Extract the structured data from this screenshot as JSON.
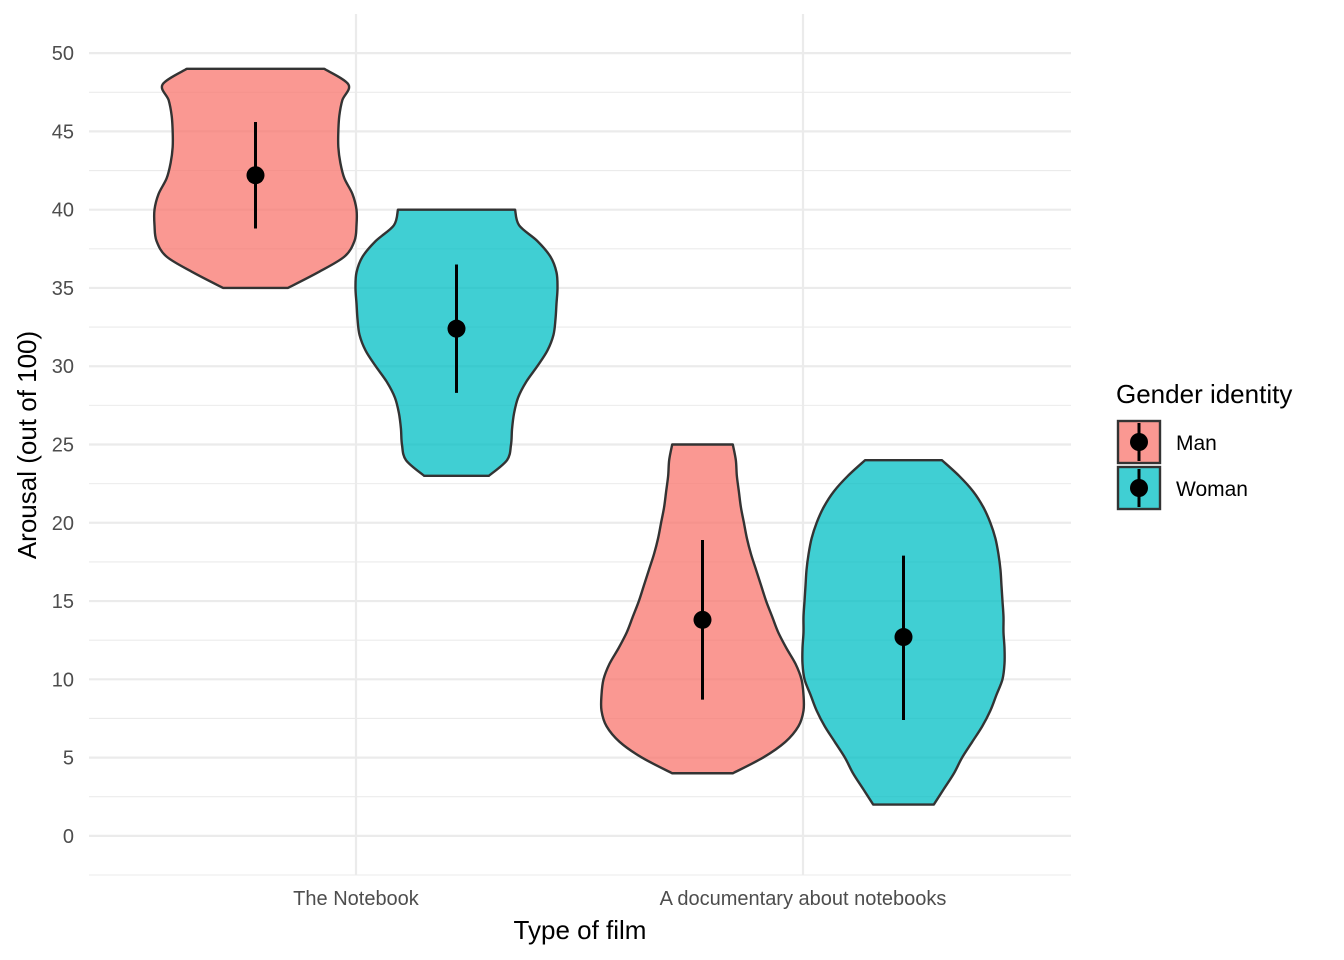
{
  "chart_data": {
    "type": "violin",
    "xlabel": "Type of film",
    "ylabel": "Arousal (out of 100)",
    "categories": [
      "The Notebook",
      "A documentary about notebooks"
    ],
    "ylim": [
      -2.5,
      52.5
    ],
    "yticks": [
      0,
      5,
      10,
      15,
      20,
      25,
      30,
      35,
      40,
      45,
      50
    ],
    "grid": true,
    "legend": {
      "title": "Gender identity",
      "position": "right",
      "entries": [
        "Man",
        "Woman"
      ]
    },
    "series": [
      {
        "name": "Man",
        "color": "#F8766D",
        "groups": [
          {
            "category": "The Notebook",
            "mean": 42.2,
            "lower": 38.8,
            "upper": 45.6,
            "ymin": 35,
            "ymax": 49,
            "density": [
              [
                35,
                0.32
              ],
              [
                36,
                0.62
              ],
              [
                37,
                0.88
              ],
              [
                38,
                0.98
              ],
              [
                39,
                1.0
              ],
              [
                40,
                1.0
              ],
              [
                41,
                0.96
              ],
              [
                42,
                0.88
              ],
              [
                43,
                0.84
              ],
              [
                44,
                0.82
              ],
              [
                45,
                0.82
              ],
              [
                46,
                0.83
              ],
              [
                47,
                0.86
              ],
              [
                48,
                0.92
              ],
              [
                49,
                0.68
              ]
            ]
          },
          {
            "category": "A documentary about notebooks",
            "mean": 13.8,
            "lower": 8.7,
            "upper": 18.9,
            "ymin": 4,
            "ymax": 25,
            "density": [
              [
                4,
                0.3
              ],
              [
                5,
                0.6
              ],
              [
                6,
                0.82
              ],
              [
                7,
                0.95
              ],
              [
                8,
                1.0
              ],
              [
                9,
                1.0
              ],
              [
                10,
                0.98
              ],
              [
                11,
                0.92
              ],
              [
                12,
                0.83
              ],
              [
                13,
                0.75
              ],
              [
                14,
                0.69
              ],
              [
                15,
                0.63
              ],
              [
                16,
                0.58
              ],
              [
                17,
                0.53
              ],
              [
                18,
                0.48
              ],
              [
                19,
                0.44
              ],
              [
                20,
                0.41
              ],
              [
                21,
                0.38
              ],
              [
                22,
                0.36
              ],
              [
                23,
                0.34
              ],
              [
                24,
                0.33
              ],
              [
                25,
                0.3
              ]
            ]
          }
        ]
      },
      {
        "name": "Woman",
        "color": "#00BFC4",
        "groups": [
          {
            "category": "The Notebook",
            "mean": 32.4,
            "lower": 28.3,
            "upper": 36.5,
            "ymin": 23,
            "ymax": 40,
            "density": [
              [
                23,
                0.32
              ],
              [
                24,
                0.5
              ],
              [
                25,
                0.54
              ],
              [
                26,
                0.55
              ],
              [
                27,
                0.57
              ],
              [
                28,
                0.61
              ],
              [
                29,
                0.69
              ],
              [
                30,
                0.8
              ],
              [
                31,
                0.9
              ],
              [
                32,
                0.96
              ],
              [
                33,
                0.98
              ],
              [
                34,
                0.99
              ],
              [
                35,
                1.0
              ],
              [
                36,
                0.99
              ],
              [
                37,
                0.93
              ],
              [
                38,
                0.8
              ],
              [
                39,
                0.62
              ],
              [
                40,
                0.58
              ]
            ]
          },
          {
            "category": "A documentary about notebooks",
            "mean": 12.7,
            "lower": 7.4,
            "upper": 17.9,
            "ymin": 2,
            "ymax": 24,
            "density": [
              [
                2,
                0.3
              ],
              [
                3,
                0.4
              ],
              [
                4,
                0.5
              ],
              [
                5,
                0.58
              ],
              [
                6,
                0.68
              ],
              [
                7,
                0.78
              ],
              [
                8,
                0.86
              ],
              [
                9,
                0.92
              ],
              [
                10,
                0.98
              ],
              [
                11,
                1.0
              ],
              [
                12,
                1.0
              ],
              [
                13,
                0.99
              ],
              [
                14,
                0.99
              ],
              [
                15,
                0.98
              ],
              [
                16,
                0.97
              ],
              [
                17,
                0.96
              ],
              [
                18,
                0.94
              ],
              [
                19,
                0.91
              ],
              [
                20,
                0.86
              ],
              [
                21,
                0.79
              ],
              [
                22,
                0.69
              ],
              [
                23,
                0.55
              ],
              [
                24,
                0.38
              ]
            ]
          }
        ]
      }
    ]
  }
}
